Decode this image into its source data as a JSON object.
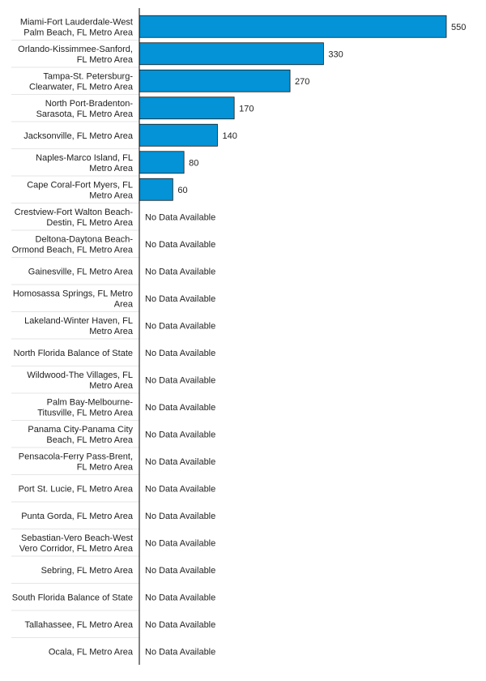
{
  "chart_data": {
    "type": "bar",
    "orientation": "horizontal",
    "title": "",
    "xlabel": "",
    "ylabel": "",
    "grid": false,
    "bar_color": "#0393D6",
    "bar_border_color": "#1a1a1a",
    "no_data_text": "No Data Available",
    "xlim": [
      0,
      550
    ],
    "categories": [
      [
        "Miami-Fort Lauderdale-West",
        "Palm Beach, FL Metro Area"
      ],
      [
        "Orlando-Kissimmee-Sanford,",
        "FL Metro Area"
      ],
      [
        "Tampa-St. Petersburg-",
        "Clearwater, FL Metro Area"
      ],
      [
        "North Port-Bradenton-",
        "Sarasota, FL Metro Area"
      ],
      [
        "Jacksonville, FL Metro Area"
      ],
      [
        "Naples-Marco Island, FL",
        "Metro Area"
      ],
      [
        "Cape Coral-Fort Myers, FL",
        "Metro Area"
      ],
      [
        "Crestview-Fort Walton Beach-",
        "Destin, FL Metro Area"
      ],
      [
        "Deltona-Daytona Beach-",
        "Ormond Beach, FL Metro Area"
      ],
      [
        "Gainesville, FL Metro Area"
      ],
      [
        "Homosassa Springs, FL Metro",
        "Area"
      ],
      [
        "Lakeland-Winter Haven, FL",
        "Metro Area"
      ],
      [
        "North Florida Balance of State"
      ],
      [
        "Wildwood-The Villages, FL",
        "Metro Area"
      ],
      [
        "Palm Bay-Melbourne-",
        "Titusville, FL Metro Area"
      ],
      [
        "Panama City-Panama City",
        "Beach, FL Metro Area"
      ],
      [
        "Pensacola-Ferry Pass-Brent,",
        "FL Metro Area"
      ],
      [
        "Port St. Lucie, FL Metro Area"
      ],
      [
        "Punta Gorda, FL Metro Area"
      ],
      [
        "Sebastian-Vero Beach-West",
        "Vero Corridor, FL Metro Area"
      ],
      [
        "Sebring, FL Metro Area"
      ],
      [
        "South Florida Balance of State"
      ],
      [
        "Tallahassee, FL Metro Area"
      ],
      [
        "Ocala, FL Metro Area"
      ]
    ],
    "values": [
      550,
      330,
      270,
      170,
      140,
      80,
      60,
      null,
      null,
      null,
      null,
      null,
      null,
      null,
      null,
      null,
      null,
      null,
      null,
      null,
      null,
      null,
      null,
      null
    ]
  }
}
